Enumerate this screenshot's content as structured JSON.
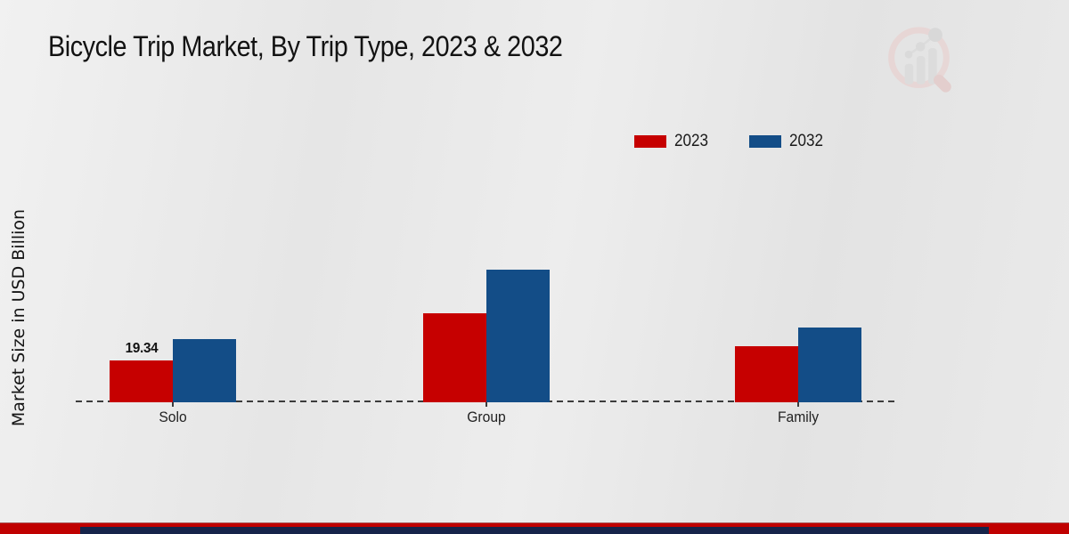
{
  "header": {
    "title": "Bicycle Trip Market, By Trip Type, 2023 & 2032"
  },
  "watermark_icon": "bar-chart-magnifier-logo",
  "chart_data": {
    "type": "bar",
    "title": "Bicycle Trip Market, By Trip Type, 2023 & 2032",
    "categories": [
      "Solo",
      "Group",
      "Family"
    ],
    "series": [
      {
        "name": "2023",
        "color": "#c60000",
        "values": [
          19.34,
          41.2,
          25.9
        ]
      },
      {
        "name": "2032",
        "color": "#134d87",
        "values": [
          29.2,
          61.3,
          34.6
        ]
      }
    ],
    "xlabel": "",
    "ylabel": "Market Size in USD Billion",
    "ylim": [
      0,
      75
    ],
    "grid": false,
    "legend_position": "top-right",
    "axis_style": "dashed-baseline-only",
    "data_labels": [
      {
        "series": "2023",
        "category": "Solo",
        "text": "19.34"
      }
    ]
  },
  "colors": {
    "series_2023": "#c60000",
    "series_2032": "#134d87",
    "footer_red": "#c00000",
    "footer_navy": "#16244a",
    "background": "#e9e9e9",
    "axis": "#3c3c3c"
  }
}
